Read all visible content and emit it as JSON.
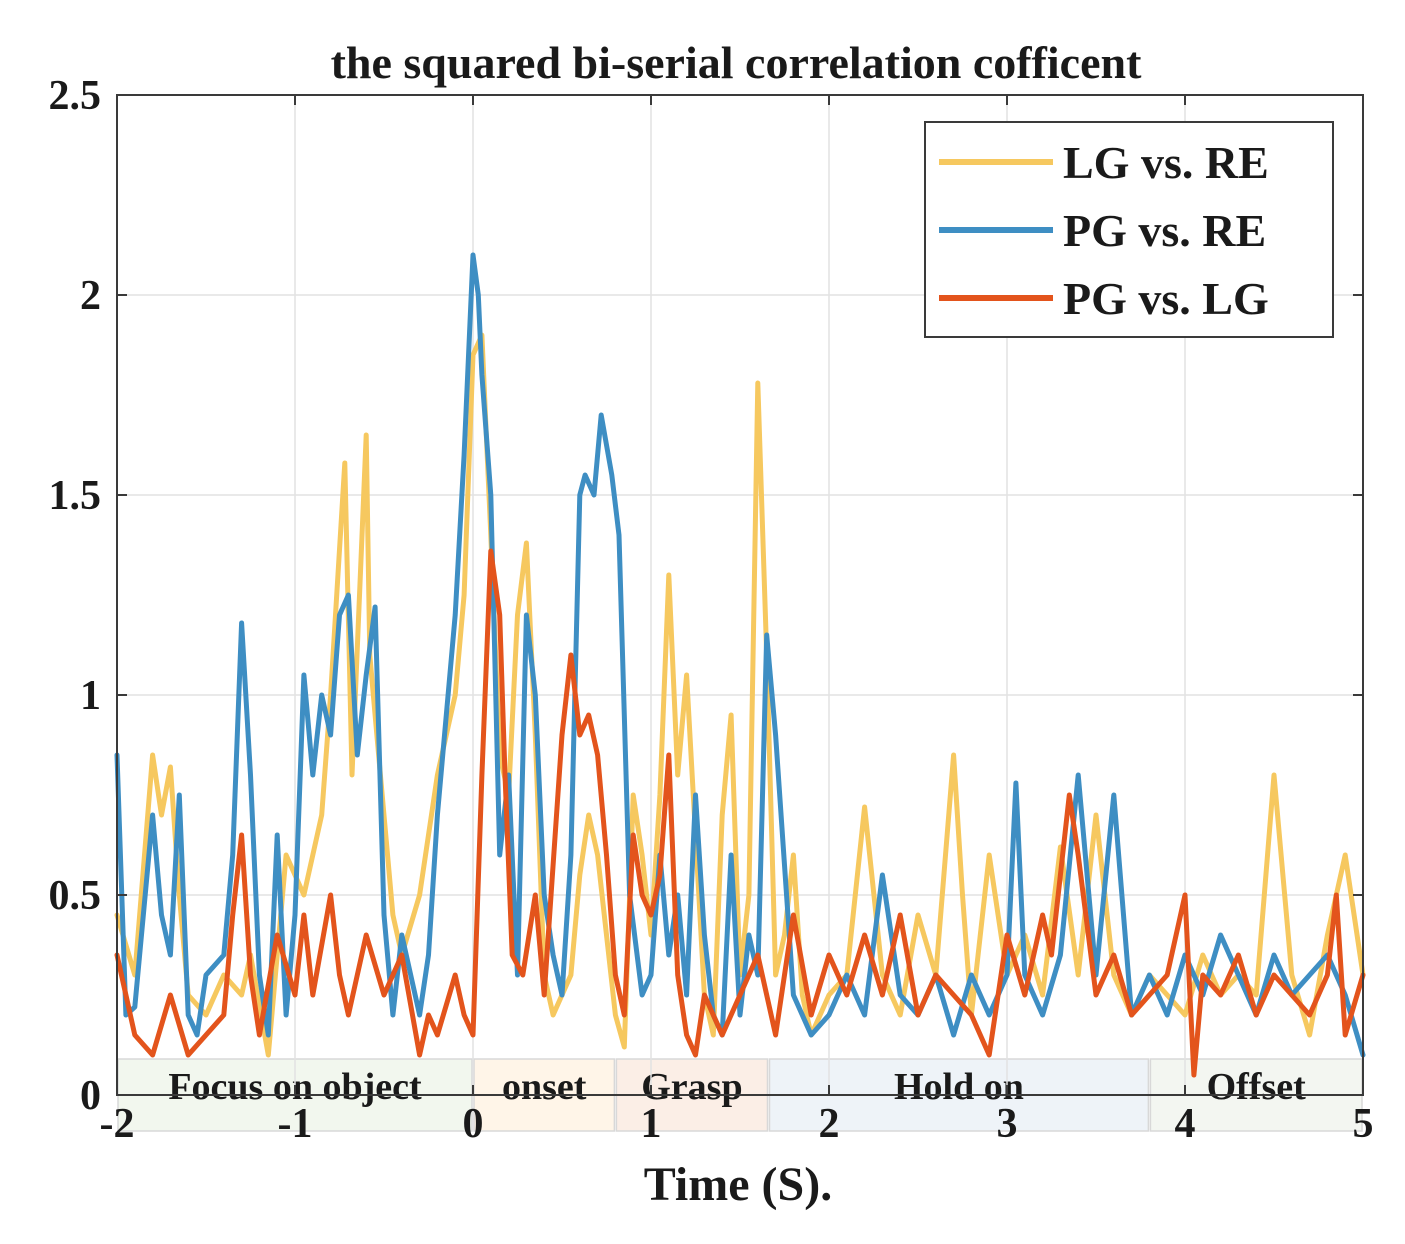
{
  "chart_data": {
    "type": "line",
    "title": "the squared bi-serial correlation cofficent",
    "xlabel": "Time (S).",
    "ylabel": "",
    "xlim": [
      -2,
      5
    ],
    "ylim": [
      0,
      2.5
    ],
    "xticks": [
      -2,
      -1,
      0,
      1,
      2,
      3,
      4,
      5
    ],
    "xtick_labels": [
      "-2",
      "-1",
      "0",
      "1",
      "2",
      "3",
      "4",
      "5"
    ],
    "yticks": [
      0,
      0.5,
      1,
      1.5,
      2,
      2.5
    ],
    "ytick_labels": [
      "0",
      "0.5",
      "1",
      "1.5",
      "2",
      "2.5"
    ],
    "grid": true,
    "legend_position": "top-right",
    "phases": [
      {
        "label": "Focus on object",
        "start": -2,
        "end": 0,
        "color": "#f2f7ee"
      },
      {
        "label": "onset",
        "start": 0,
        "end": 0.8,
        "color": "#fff5e8"
      },
      {
        "label": "Grasp",
        "start": 0.8,
        "end": 1.66,
        "color": "#fbeee6"
      },
      {
        "label": "Hold on",
        "start": 1.66,
        "end": 3.8,
        "color": "#eef3f8"
      },
      {
        "label": "Offset",
        "start": 3.8,
        "end": 5,
        "color": "#f3f6f1"
      }
    ],
    "series": [
      {
        "name": "LG vs. RE",
        "color": "#F6C85F",
        "x": [
          -2.0,
          -1.9,
          -1.8,
          -1.75,
          -1.7,
          -1.65,
          -1.6,
          -1.5,
          -1.4,
          -1.3,
          -1.25,
          -1.15,
          -1.05,
          -0.95,
          -0.85,
          -0.8,
          -0.72,
          -0.68,
          -0.6,
          -0.58,
          -0.52,
          -0.45,
          -0.4,
          -0.3,
          -0.2,
          -0.1,
          -0.05,
          0.0,
          0.05,
          0.08,
          0.1,
          0.15,
          0.2,
          0.25,
          0.3,
          0.35,
          0.4,
          0.45,
          0.5,
          0.55,
          0.6,
          0.65,
          0.7,
          0.75,
          0.8,
          0.85,
          0.9,
          0.95,
          1.0,
          1.05,
          1.1,
          1.15,
          1.2,
          1.25,
          1.3,
          1.35,
          1.4,
          1.45,
          1.5,
          1.55,
          1.6,
          1.65,
          1.7,
          1.75,
          1.8,
          1.85,
          1.9,
          2.0,
          2.1,
          2.2,
          2.3,
          2.4,
          2.5,
          2.6,
          2.7,
          2.75,
          2.8,
          2.9,
          3.0,
          3.1,
          3.2,
          3.3,
          3.4,
          3.5,
          3.6,
          3.7,
          3.8,
          3.9,
          4.0,
          4.1,
          4.2,
          4.3,
          4.4,
          4.5,
          4.6,
          4.7,
          4.8,
          4.9,
          5.0
        ],
        "y": [
          0.45,
          0.3,
          0.85,
          0.7,
          0.82,
          0.5,
          0.25,
          0.2,
          0.3,
          0.25,
          0.35,
          0.1,
          0.6,
          0.5,
          0.7,
          1.0,
          1.58,
          0.8,
          1.65,
          1.1,
          0.8,
          0.45,
          0.35,
          0.5,
          0.8,
          1.0,
          1.25,
          1.85,
          1.9,
          1.6,
          1.4,
          0.85,
          0.75,
          1.2,
          1.38,
          0.9,
          0.3,
          0.2,
          0.25,
          0.3,
          0.55,
          0.7,
          0.6,
          0.4,
          0.2,
          0.12,
          0.75,
          0.6,
          0.4,
          0.75,
          1.3,
          0.8,
          1.05,
          0.65,
          0.25,
          0.15,
          0.7,
          0.95,
          0.3,
          0.5,
          1.78,
          1.1,
          0.3,
          0.4,
          0.6,
          0.25,
          0.15,
          0.25,
          0.3,
          0.72,
          0.3,
          0.2,
          0.45,
          0.3,
          0.85,
          0.5,
          0.2,
          0.6,
          0.3,
          0.4,
          0.25,
          0.62,
          0.3,
          0.7,
          0.3,
          0.2,
          0.3,
          0.25,
          0.2,
          0.35,
          0.25,
          0.3,
          0.25,
          0.8,
          0.3,
          0.15,
          0.4,
          0.6,
          0.3
        ]
      },
      {
        "name": "PG vs. RE",
        "color": "#3E8EC3",
        "x": [
          -2.0,
          -1.95,
          -1.9,
          -1.8,
          -1.75,
          -1.7,
          -1.65,
          -1.6,
          -1.55,
          -1.5,
          -1.4,
          -1.35,
          -1.3,
          -1.25,
          -1.2,
          -1.15,
          -1.1,
          -1.05,
          -1.0,
          -0.95,
          -0.9,
          -0.85,
          -0.8,
          -0.75,
          -0.7,
          -0.65,
          -0.6,
          -0.55,
          -0.5,
          -0.45,
          -0.4,
          -0.3,
          -0.25,
          -0.2,
          -0.1,
          -0.05,
          0.0,
          0.03,
          0.05,
          0.1,
          0.15,
          0.2,
          0.25,
          0.3,
          0.35,
          0.4,
          0.45,
          0.5,
          0.55,
          0.6,
          0.63,
          0.68,
          0.72,
          0.78,
          0.82,
          0.88,
          0.95,
          1.0,
          1.05,
          1.1,
          1.15,
          1.2,
          1.25,
          1.3,
          1.35,
          1.4,
          1.45,
          1.5,
          1.55,
          1.6,
          1.65,
          1.7,
          1.8,
          1.9,
          2.0,
          2.1,
          2.2,
          2.3,
          2.4,
          2.5,
          2.6,
          2.7,
          2.8,
          2.9,
          3.0,
          3.05,
          3.1,
          3.2,
          3.3,
          3.4,
          3.5,
          3.6,
          3.7,
          3.8,
          3.9,
          4.0,
          4.1,
          4.2,
          4.3,
          4.4,
          4.5,
          4.6,
          4.7,
          4.8,
          4.9,
          5.0
        ],
        "y": [
          0.85,
          0.2,
          0.22,
          0.7,
          0.45,
          0.35,
          0.75,
          0.2,
          0.15,
          0.3,
          0.35,
          0.6,
          1.18,
          0.8,
          0.3,
          0.15,
          0.65,
          0.2,
          0.45,
          1.05,
          0.8,
          1.0,
          0.9,
          1.2,
          1.25,
          0.85,
          1.05,
          1.22,
          0.45,
          0.2,
          0.4,
          0.2,
          0.35,
          0.7,
          1.2,
          1.6,
          2.1,
          2.0,
          1.8,
          1.5,
          0.6,
          0.8,
          0.3,
          1.2,
          1.0,
          0.5,
          0.35,
          0.25,
          0.6,
          1.5,
          1.55,
          1.5,
          1.7,
          1.55,
          1.4,
          0.5,
          0.25,
          0.3,
          0.6,
          0.35,
          0.5,
          0.25,
          0.75,
          0.4,
          0.2,
          0.15,
          0.6,
          0.2,
          0.4,
          0.3,
          1.15,
          0.9,
          0.25,
          0.15,
          0.2,
          0.3,
          0.2,
          0.55,
          0.25,
          0.2,
          0.3,
          0.15,
          0.3,
          0.2,
          0.3,
          0.78,
          0.3,
          0.2,
          0.35,
          0.8,
          0.3,
          0.75,
          0.2,
          0.3,
          0.2,
          0.35,
          0.25,
          0.4,
          0.3,
          0.2,
          0.35,
          0.25,
          0.3,
          0.35,
          0.25,
          0.1
        ]
      },
      {
        "name": "PG vs. LG",
        "color": "#E3541C",
        "x": [
          -2.0,
          -1.9,
          -1.8,
          -1.7,
          -1.6,
          -1.5,
          -1.4,
          -1.35,
          -1.3,
          -1.25,
          -1.2,
          -1.1,
          -1.0,
          -0.95,
          -0.9,
          -0.8,
          -0.75,
          -0.7,
          -0.6,
          -0.5,
          -0.4,
          -0.3,
          -0.25,
          -0.2,
          -0.1,
          -0.05,
          0.0,
          0.05,
          0.1,
          0.15,
          0.18,
          0.22,
          0.28,
          0.35,
          0.4,
          0.5,
          0.55,
          0.6,
          0.65,
          0.7,
          0.75,
          0.8,
          0.85,
          0.9,
          0.95,
          1.0,
          1.05,
          1.1,
          1.15,
          1.2,
          1.25,
          1.3,
          1.35,
          1.4,
          1.5,
          1.6,
          1.7,
          1.8,
          1.9,
          2.0,
          2.1,
          2.2,
          2.3,
          2.4,
          2.5,
          2.6,
          2.7,
          2.8,
          2.9,
          3.0,
          3.1,
          3.2,
          3.25,
          3.3,
          3.35,
          3.4,
          3.5,
          3.6,
          3.7,
          3.8,
          3.9,
          4.0,
          4.05,
          4.1,
          4.2,
          4.3,
          4.4,
          4.5,
          4.6,
          4.7,
          4.8,
          4.85,
          4.9,
          5.0
        ],
        "y": [
          0.35,
          0.15,
          0.1,
          0.25,
          0.1,
          0.15,
          0.2,
          0.45,
          0.65,
          0.3,
          0.15,
          0.4,
          0.25,
          0.45,
          0.25,
          0.5,
          0.3,
          0.2,
          0.4,
          0.25,
          0.35,
          0.1,
          0.2,
          0.15,
          0.3,
          0.2,
          0.15,
          0.8,
          1.36,
          1.2,
          0.8,
          0.35,
          0.3,
          0.5,
          0.25,
          0.9,
          1.1,
          0.9,
          0.95,
          0.85,
          0.6,
          0.3,
          0.2,
          0.65,
          0.5,
          0.45,
          0.55,
          0.85,
          0.3,
          0.15,
          0.1,
          0.25,
          0.2,
          0.15,
          0.25,
          0.35,
          0.15,
          0.45,
          0.2,
          0.35,
          0.25,
          0.4,
          0.25,
          0.45,
          0.2,
          0.3,
          0.25,
          0.2,
          0.1,
          0.4,
          0.25,
          0.45,
          0.35,
          0.55,
          0.75,
          0.6,
          0.25,
          0.35,
          0.2,
          0.25,
          0.3,
          0.5,
          0.05,
          0.3,
          0.25,
          0.35,
          0.2,
          0.3,
          0.25,
          0.2,
          0.3,
          0.5,
          0.15,
          0.3
        ]
      }
    ]
  }
}
